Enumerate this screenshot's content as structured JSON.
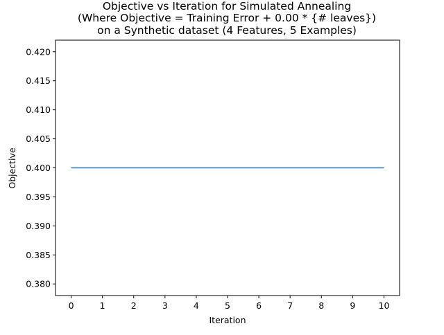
{
  "chart_data": {
    "type": "line",
    "title_lines": [
      "Objective vs Iteration for Simulated Annealing",
      "(Where Objective = Training Error + 0.00 * {# leaves})",
      "on a Synthetic dataset (4 Features, 5 Examples)"
    ],
    "xlabel": "Iteration",
    "ylabel": "Objective",
    "x": [
      0,
      1,
      2,
      3,
      4,
      5,
      6,
      7,
      8,
      9,
      10
    ],
    "series": [
      {
        "values": [
          0.4,
          0.4,
          0.4,
          0.4,
          0.4,
          0.4,
          0.4,
          0.4,
          0.4,
          0.4,
          0.4
        ],
        "color": "#1f77b4"
      }
    ],
    "xlim": [
      -0.5,
      10.5
    ],
    "ylim": [
      0.378,
      0.422
    ],
    "xticks": [
      "0",
      "1",
      "2",
      "3",
      "4",
      "5",
      "6",
      "7",
      "8",
      "9",
      "10"
    ],
    "yticks": [
      "0.380",
      "0.385",
      "0.390",
      "0.395",
      "0.400",
      "0.405",
      "0.410",
      "0.415",
      "0.420"
    ],
    "grid": false,
    "legend": "none"
  }
}
